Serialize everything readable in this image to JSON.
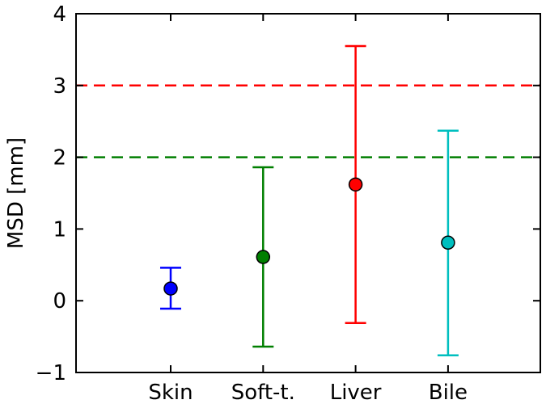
{
  "chart_data": {
    "type": "scatter",
    "title": "",
    "xlabel": "",
    "ylabel": "MSD [mm]",
    "ylim": [
      -1,
      4
    ],
    "yticks": [
      -1,
      0,
      1,
      2,
      3,
      4
    ],
    "ytick_labels": [
      "−1",
      "0",
      "1",
      "2",
      "3",
      "4"
    ],
    "grid": false,
    "categories": [
      "Skin",
      "Soft-t.",
      "Liver",
      "Bile"
    ],
    "points": [
      {
        "category": "Skin",
        "value": 0.17,
        "lower": -0.11,
        "upper": 0.46,
        "color": "#0000ff"
      },
      {
        "category": "Soft-t.",
        "value": 0.61,
        "lower": -0.64,
        "upper": 1.86,
        "color": "#007f00"
      },
      {
        "category": "Liver",
        "value": 1.62,
        "lower": -0.31,
        "upper": 3.55,
        "color": "#ff0000"
      },
      {
        "category": "Bile",
        "value": 0.81,
        "lower": -0.76,
        "upper": 2.37,
        "color": "#00bfbf"
      }
    ],
    "reference_lines": [
      {
        "y": 3,
        "color": "#ff0000",
        "style": "dashed"
      },
      {
        "y": 2,
        "color": "#007f00",
        "style": "dashed"
      }
    ]
  }
}
